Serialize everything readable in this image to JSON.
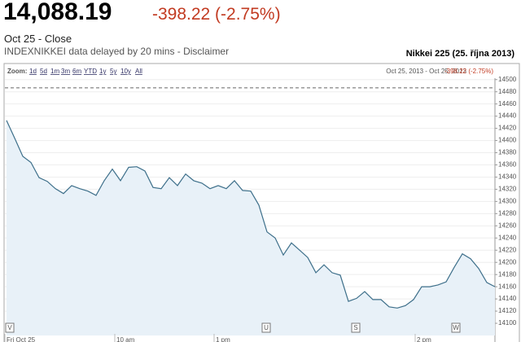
{
  "header": {
    "price": "14,088.19",
    "change": "-398.22 (-2.75%)",
    "status": "Oct 25 - Close",
    "delay_note": "INDEXNIKKEI data delayed by 20 mins - Disclaimer",
    "chart_caption": "Nikkei 225 (25. října 2013)"
  },
  "zoom": {
    "label": "Zoom:",
    "options": [
      "1d",
      "5d",
      "1m",
      "3m",
      "6m",
      "YTD",
      "1y",
      "5y",
      "10y",
      "All"
    ],
    "range": "Oct 25, 2013 - Oct 25, 2013",
    "range_change": "-398.22 (-2.75%)"
  },
  "chart_data": {
    "type": "line",
    "color": "#3d6f8a",
    "fill": "#e8f1f8",
    "values": [
      14433,
      14404,
      14374,
      14364,
      14339,
      14333,
      14321,
      14313,
      14326,
      14321,
      14317,
      14310,
      14334,
      14353,
      14334,
      14356,
      14357,
      14350,
      14323,
      14321,
      14339,
      14326,
      14345,
      14334,
      14330,
      14321,
      14326,
      14321,
      14334,
      14318,
      14317,
      14294,
      14250,
      14240,
      14212,
      14232,
      14220,
      14208,
      14183,
      14196,
      14183,
      14179,
      14136,
      14141,
      14152,
      14139,
      14139,
      14127,
      14125,
      14129,
      14139,
      14160,
      14160,
      14163,
      14168,
      14192,
      14214,
      14206,
      14190,
      14167,
      14160
    ],
    "previous_close": 14486.41,
    "ylim": [
      14080,
      14505
    ],
    "yticks": [
      14100,
      14120,
      14140,
      14160,
      14180,
      14200,
      14220,
      14240,
      14260,
      14280,
      14300,
      14320,
      14340,
      14360,
      14380,
      14400,
      14420,
      14440,
      14460,
      14480,
      14500
    ],
    "grid": true,
    "time_labels": [
      "Fri Oct 25",
      "10 am",
      "1 pm",
      "2 pm"
    ],
    "flags": [
      "V",
      "U",
      "S",
      "W"
    ]
  }
}
